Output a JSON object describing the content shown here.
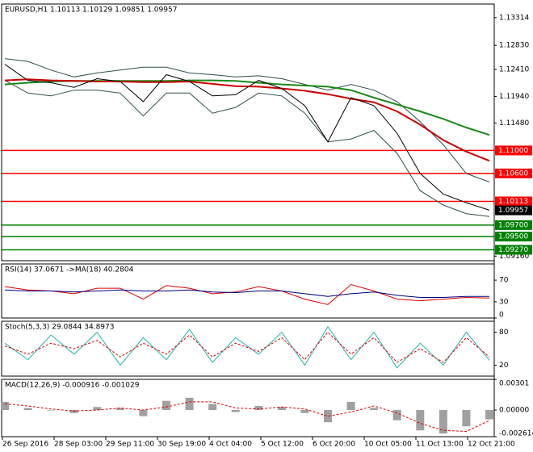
{
  "chart_data": [
    {
      "type": "line",
      "title": "EURUSD,H1  1.10113 1.10129 1.09851 1.09957",
      "ylim": [
        1.0908,
        1.1355
      ],
      "yticks": [
        1.13314,
        {
          "value": 1.1283,
          "label": "1.12830"
        },
        {
          "value": 1.1241,
          "label": "1.12410"
        },
        {
          "value": 1.1194,
          "label": "1.11940"
        },
        {
          "value": 1.1148,
          "label": "1.11480"
        },
        {
          "value": 1.0916,
          "label": "1.09160"
        }
      ],
      "series": [
        {
          "color": "#2f4f4f",
          "values": [
            1.126,
            1.1255,
            1.124,
            1.1228,
            1.1235,
            1.124,
            1.1245,
            1.1245,
            1.1235,
            1.1232,
            1.1228,
            1.123,
            1.1225,
            1.1215,
            1.1205,
            1.1215,
            1.1205,
            1.1185,
            1.115,
            1.111,
            1.106,
            1.1045
          ]
        },
        {
          "color": "#2f4f4f",
          "values": [
            1.1222,
            1.12,
            1.1195,
            1.1205,
            1.1205,
            1.12,
            1.116,
            1.12,
            1.12,
            1.1165,
            1.1175,
            1.12,
            1.1195,
            1.1165,
            1.1115,
            1.112,
            1.1135,
            1.1095,
            1.103,
            1.1005,
            1.099,
            1.0985
          ]
        },
        {
          "color": "#1a8a1a",
          "width": 2,
          "values": [
            1.1215,
            1.1218,
            1.122,
            1.1221,
            1.1221,
            1.1221,
            1.1221,
            1.1221,
            1.1222,
            1.1222,
            1.1221,
            1.1218,
            1.1215,
            1.1213,
            1.1211,
            1.1205,
            1.1192,
            1.118,
            1.1168,
            1.1155,
            1.114,
            1.1127
          ]
        },
        {
          "color": "#cc0000",
          "width": 2,
          "values": [
            1.1222,
            1.1224,
            1.1222,
            1.1221,
            1.122,
            1.122,
            1.1219,
            1.1219,
            1.122,
            1.1216,
            1.1212,
            1.1211,
            1.1208,
            1.1204,
            1.1198,
            1.119,
            1.1184,
            1.1168,
            1.1145,
            1.1118,
            1.1098,
            1.1082
          ]
        },
        {
          "color": "#000000",
          "values": [
            1.125,
            1.1222,
            1.1218,
            1.121,
            1.1225,
            1.122,
            1.1185,
            1.1232,
            1.122,
            1.1195,
            1.1197,
            1.1222,
            1.1208,
            1.1178,
            1.1115,
            1.1192,
            1.1178,
            1.113,
            1.106,
            1.1024,
            1.1009,
            1.0996
          ]
        }
      ],
      "levels": [
        {
          "value": 1.11,
          "label": "1.11000",
          "color": "#ff0000"
        },
        {
          "value": 1.106,
          "label": "1.10600",
          "color": "#ff0000"
        },
        {
          "value": 1.10113,
          "label": "1.10113",
          "color": "#ff0000"
        },
        {
          "value": 1.097,
          "label": "1.09700",
          "color": "#008000"
        },
        {
          "value": 1.095,
          "label": "1.09500",
          "color": "#008000"
        },
        {
          "value": 1.0927,
          "label": "1.09270",
          "color": "#008000"
        }
      ],
      "last": 1.09957
    },
    {
      "type": "line",
      "title": "RSI(14) 37.0671  ->MA(18) 40.2804",
      "ylim": [
        0,
        100
      ],
      "yticks": [
        70,
        30,
        0
      ],
      "series": [
        {
          "color": "#e00000",
          "values": [
            58,
            52,
            50,
            45,
            55,
            55,
            35,
            60,
            55,
            45,
            48,
            58,
            50,
            35,
            25,
            62,
            50,
            35,
            32,
            35,
            38,
            37
          ]
        },
        {
          "color": "#000080",
          "values": [
            52,
            50,
            50,
            48,
            50,
            52,
            50,
            50,
            52,
            48,
            47,
            50,
            50,
            45,
            40,
            45,
            48,
            42,
            38,
            38,
            40,
            40
          ]
        }
      ]
    },
    {
      "type": "line",
      "title": "Stoch(5,3,3) 29.0844 34.8973",
      "ylim": [
        0,
        100
      ],
      "yticks": [
        80,
        20
      ],
      "series": [
        {
          "color": "#20b2aa",
          "values": [
            60,
            30,
            75,
            40,
            80,
            20,
            70,
            30,
            85,
            25,
            70,
            40,
            80,
            20,
            90,
            30,
            80,
            15,
            60,
            20,
            80,
            29
          ]
        },
        {
          "color": "#e00000",
          "dash": true,
          "values": [
            55,
            40,
            60,
            50,
            65,
            35,
            60,
            40,
            75,
            35,
            60,
            45,
            70,
            30,
            80,
            40,
            70,
            25,
            50,
            25,
            70,
            35
          ]
        }
      ]
    },
    {
      "type": "line",
      "title": "MACD(12,26,9) -0.000916 -0.001029",
      "ylim": [
        -0.002614,
        0.00301
      ],
      "yticks": [
        0.00301,
        {
          "value": 0,
          "label": "0.00000"
        },
        -0.002614
      ],
      "series": [
        {
          "kind": "bar",
          "color": "#a0a0a0",
          "values": [
            0.0008,
            0.0002,
            0.0,
            -0.0003,
            0.0003,
            0.0002,
            -0.0006,
            0.0009,
            0.0012,
            0.0006,
            -0.0002,
            0.0004,
            0.0003,
            -0.0003,
            -0.0012,
            0.0008,
            0.0002,
            -0.001,
            -0.002,
            -0.0023,
            -0.0016,
            -0.000916
          ]
        },
        {
          "color": "#e00000",
          "dash": true,
          "values": [
            0.0006,
            0.0004,
            0.0001,
            -0.0001,
            0.0,
            0.0002,
            0.0,
            0.0003,
            0.0008,
            0.0008,
            0.0002,
            0.0001,
            0.0003,
            0.0001,
            -0.0006,
            -0.0002,
            0.0004,
            -0.0003,
            -0.0013,
            -0.002,
            -0.0021,
            -0.001029
          ]
        }
      ]
    }
  ],
  "x_labels": [
    "26 Sep 2016",
    "28 Sep 03:00",
    "29 Sep 11:00",
    "30 Sep 19:00",
    "4 Oct 04:00",
    "5 Oct 12:00",
    "6 Oct 20:00",
    "10 Oct 05:00",
    "11 Oct 13:00",
    "12 Oct 21:00"
  ]
}
